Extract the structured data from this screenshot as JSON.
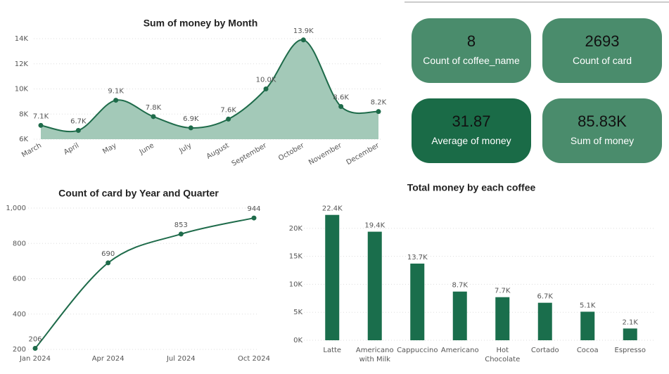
{
  "chart_data": [
    {
      "type": "area",
      "title": "Sum of money by Month",
      "categories": [
        "March",
        "April",
        "May",
        "June",
        "July",
        "August",
        "September",
        "October",
        "November",
        "December"
      ],
      "values": [
        7100,
        6700,
        9100,
        7800,
        6900,
        7600,
        10000,
        13900,
        8600,
        8200
      ],
      "value_labels": [
        "7.1K",
        "6.7K",
        "9.1K",
        "7.8K",
        "6.9K",
        "7.6K",
        "10.0K",
        "13.9K",
        "8.6K",
        "8.2K"
      ],
      "color": "#1e6b4a",
      "fill": "#a3c9b8",
      "ylim": [
        6000,
        14000
      ],
      "yticks": [
        {
          "value": 6000,
          "label": "6K"
        },
        {
          "value": 8000,
          "label": "8K"
        },
        {
          "value": 10000,
          "label": "10K"
        },
        {
          "value": 12000,
          "label": "12K"
        },
        {
          "value": 14000,
          "label": "14K"
        }
      ],
      "grid": true
    },
    {
      "type": "line",
      "title": "Count of card by Year and Quarter",
      "categories": [
        "Jan 2024",
        "Apr 2024",
        "Jul 2024",
        "Oct 2024"
      ],
      "values": [
        206,
        690,
        853,
        944
      ],
      "color": "#1e6b4a",
      "ylim": [
        200,
        1000
      ],
      "yticks": [
        200,
        400,
        600,
        800,
        {
          "value": 1000,
          "label": "1,000"
        }
      ],
      "grid": true
    },
    {
      "type": "bar",
      "title": "Total money by each coffee",
      "categories": [
        "Latte",
        "Americano with Milk",
        "Cappuccino",
        "Americano",
        "Hot Chocolate",
        "Cortado",
        "Cocoa",
        "Espresso"
      ],
      "values": [
        22400,
        19400,
        13700,
        8700,
        7700,
        6700,
        5100,
        2100
      ],
      "value_labels": [
        "22.4K",
        "19.4K",
        "13.7K",
        "8.7K",
        "7.7K",
        "6.7K",
        "5.1K",
        "2.1K"
      ],
      "color": "#1a6e4c",
      "ylim": [
        0,
        25000
      ],
      "yticks": [
        {
          "value": 0,
          "label": "0K"
        },
        {
          "value": 5000,
          "label": "5K"
        },
        {
          "value": 10000,
          "label": "10K"
        },
        {
          "value": 15000,
          "label": "15K"
        },
        {
          "value": 20000,
          "label": "20K"
        }
      ],
      "grid": true
    }
  ],
  "cards": [
    {
      "value": 8,
      "label": "Count of coffee_name",
      "color": "#4a8c6c"
    },
    {
      "value": 2693,
      "label": "Count of card",
      "color": "#4a8c6c"
    },
    {
      "value": 31.87,
      "label": "Average of money",
      "color": "#1a6b47"
    },
    {
      "value": "85.83K",
      "label": "Sum of money",
      "color": "#4a8c6c"
    }
  ]
}
